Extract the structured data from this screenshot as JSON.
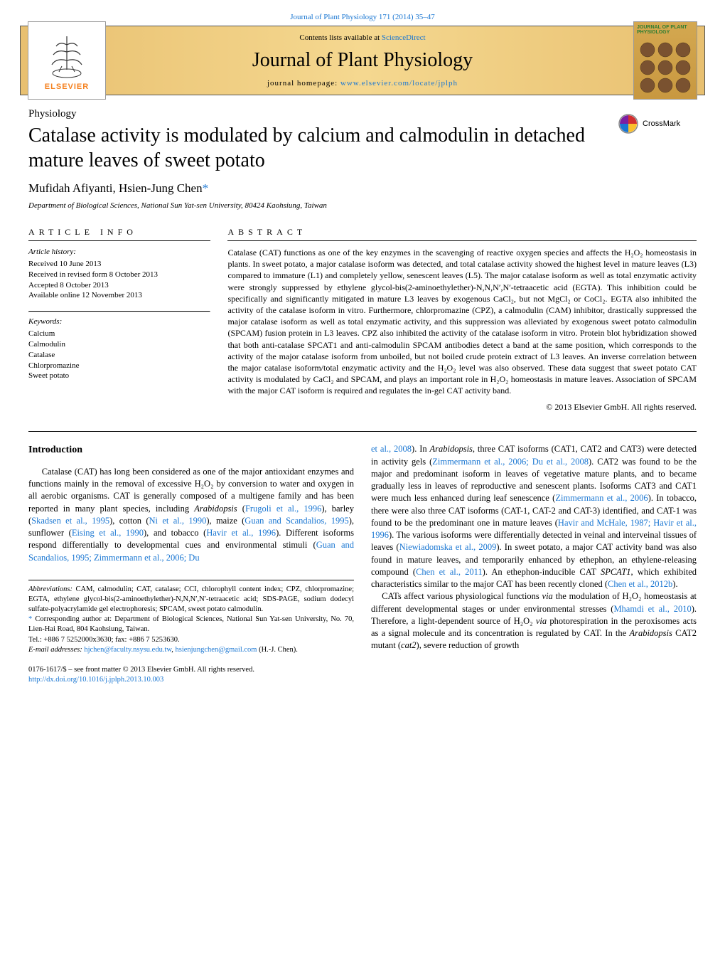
{
  "header": {
    "top_citation": "Journal of Plant Physiology 171 (2014) 35–47",
    "contents_line_pre": "Contents lists available at ",
    "contents_line_link": "ScienceDirect",
    "journal_name": "Journal of Plant Physiology",
    "homepage_pre": "journal homepage: ",
    "homepage_link": "www.elsevier.com/locate/jplph",
    "elsevier_text": "ELSEVIER",
    "cover_text": "JOURNAL OF PLANT PHYSIOLOGY"
  },
  "colors": {
    "link": "#1976d2",
    "gradient_start": "#e8c070",
    "gradient_mid": "#f5d890",
    "elsevier_orange": "#f58220",
    "cover_green": "#2e7d32"
  },
  "article": {
    "section_label": "Physiology",
    "title": "Catalase activity is modulated by calcium and calmodulin in detached mature leaves of sweet potato",
    "crossmark_label": "CrossMark",
    "authors": "Mufidah Afiyanti, Hsien-Jung Chen",
    "author_asterisk": "*",
    "affiliation": "Department of Biological Sciences, National Sun Yat-sen University, 80424 Kaohsiung, Taiwan"
  },
  "info": {
    "heading": "article info",
    "history_head": "Article history:",
    "history_lines": [
      "Received 10 June 2013",
      "Received in revised form 8 October 2013",
      "Accepted 8 October 2013",
      "Available online 12 November 2013"
    ],
    "keywords_head": "Keywords:",
    "keywords": [
      "Calcium",
      "Calmodulin",
      "Catalase",
      "Chlorpromazine",
      "Sweet potato"
    ]
  },
  "abstract": {
    "heading": "abstract",
    "text": "Catalase (CAT) functions as one of the key enzymes in the scavenging of reactive oxygen species and affects the H₂O₂ homeostasis in plants. In sweet potato, a major catalase isoform was detected, and total catalase activity showed the highest level in mature leaves (L3) compared to immature (L1) and completely yellow, senescent leaves (L5). The major catalase isoform as well as total enzymatic activity were strongly suppressed by ethylene glycol-bis(2-aminoethylether)-N,N,N′,N′-tetraacetic acid (EGTA). This inhibition could be specifically and significantly mitigated in mature L3 leaves by exogenous CaCl₂, but not MgCl₂ or CoCl₂. EGTA also inhibited the activity of the catalase isoform in vitro. Furthermore, chlorpromazine (CPZ), a calmodulin (CAM) inhibitor, drastically suppressed the major catalase isoform as well as total enzymatic activity, and this suppression was alleviated by exogenous sweet potato calmodulin (SPCAM) fusion protein in L3 leaves. CPZ also inhibited the activity of the catalase isoform in vitro. Protein blot hybridization showed that both anti-catalase SPCAT1 and anti-calmodulin SPCAM antibodies detect a band at the same position, which corresponds to the activity of the major catalase isoform from unboiled, but not boiled crude protein extract of L3 leaves. An inverse correlation between the major catalase isoform/total enzymatic activity and the H₂O₂ level was also observed. These data suggest that sweet potato CAT activity is modulated by CaCl₂ and SPCAM, and plays an important role in H₂O₂ homeostasis in mature leaves. Association of SPCAM with the major CAT isoform is required and regulates the in-gel CAT activity band.",
    "copyright": "© 2013 Elsevier GmbH. All rights reserved."
  },
  "body": {
    "intro_heading": "Introduction",
    "col1_html": "Catalase (CAT) has long been considered as one of the major antioxidant enzymes and functions mainly in the removal of excessive H₂O₂ by conversion to water and oxygen in all aerobic organisms. CAT is generally composed of a multigene family and has been reported in many plant species, including <i>Arabidopsis</i> (<span class='ref-link'>Frugoli et al., 1996</span>), barley (<span class='ref-link'>Skadsen et al., 1995</span>), cotton (<span class='ref-link'>Ni et al., 1990</span>), maize (<span class='ref-link'>Guan and Scandalios, 1995</span>), sunflower (<span class='ref-link'>Eising et al., 1990</span>), and tobacco (<span class='ref-link'>Havir et al., 1996</span>). Different isoforms respond differentially to developmental cues and environmental stimuli (<span class='ref-link'>Guan and Scandalios, 1995; Zimmermann et al., 2006; Du</span>",
    "col2_html": "<span class='ref-link'>et al., 2008</span>). In <i>Arabidopsis</i>, three CAT isoforms (CAT1, CAT2 and CAT3) were detected in activity gels (<span class='ref-link'>Zimmermann et al., 2006; Du et al., 2008</span>). CAT2 was found to be the major and predominant isoform in leaves of vegetative mature plants, and to became gradually less in leaves of reproductive and senescent plants. Isoforms CAT3 and CAT1 were much less enhanced during leaf senescence (<span class='ref-link'>Zimmermann et al., 2006</span>). In tobacco, there were also three CAT isoforms (CAT-1, CAT-2 and CAT-3) identified, and CAT-1 was found to be the predominant one in mature leaves (<span class='ref-link'>Havir and McHale, 1987; Havir et al., 1996</span>). The various isoforms were differentially detected in veinal and interveinal tissues of leaves (<span class='ref-link'>Niewiadomska et al., 2009</span>). In sweet potato, a major CAT activity band was also found in mature leaves, and temporarily enhanced by ethephon, an ethylene-releasing compound (<span class='ref-link'>Chen et al., 2011</span>). An ethephon-inducible CAT <i>SPCAT1</i>, which exhibited characteristics similar to the major CAT has been recently cloned (<span class='ref-link'>Chen et al., 2012b</span>).<br>&nbsp;&nbsp;&nbsp;&nbsp;CATs affect various physiological functions <i>via</i> the modulation of H₂O₂ homeostasis at different developmental stages or under environmental stresses (<span class='ref-link'>Mhamdi et al., 2010</span>). Therefore, a light-dependent source of H₂O₂ <i>via</i> photorespiration in the peroxisomes acts as a signal molecule and its concentration is regulated by CAT. In the <i>Arabidopsis</i> CAT2 mutant (<i>cat2</i>), severe reduction of growth"
  },
  "footnotes": {
    "abbrev_label": "Abbreviations:",
    "abbrev_text": " CAM, calmodulin; CAT, catalase; CCI, chlorophyll content index; CPZ, chlorpromazine; EGTA, ethylene glycol-bis(2-aminoethylether)-N,N,N′,N′-tetraacetic acid; SDS-PAGE, sodium dodecyl sulfate-polyacrylamide gel electrophoresis; SPCAM, sweet potato calmodulin.",
    "corr_mark": "*",
    "corr_text": " Corresponding author at: Department of Biological Sciences, National Sun Yat-sen University, No. 70, Lien-Hai Road, 804 Kaohsiung, Taiwan.",
    "tel": "Tel.: +886 7 5252000x3630; fax: +886 7 5253630.",
    "email_label": "E-mail addresses: ",
    "email1": "hjchen@faculty.nsysu.edu.tw",
    "email_sep": ", ",
    "email2": "hsienjungchen@gmail.com",
    "email_tail": " (H.-J. Chen)."
  },
  "footer": {
    "line1": "0176-1617/$ – see front matter © 2013 Elsevier GmbH. All rights reserved.",
    "doi": "http://dx.doi.org/10.1016/j.jplph.2013.10.003"
  }
}
